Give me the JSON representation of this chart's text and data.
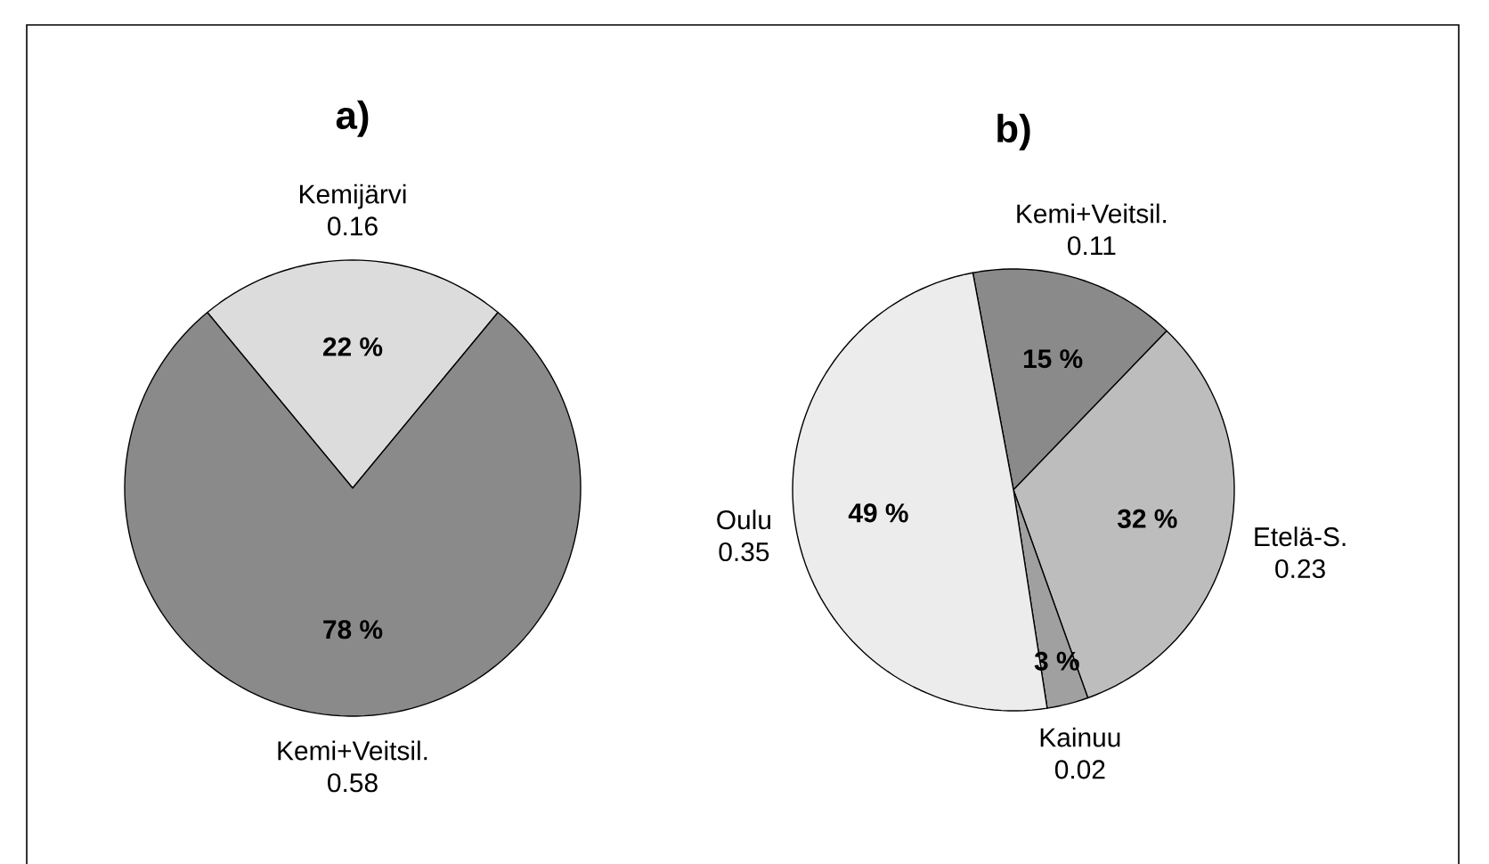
{
  "chart_data": [
    {
      "type": "pie",
      "title": "a)",
      "categories": [
        "Kemijärvi",
        "Kemi+Veitsil."
      ],
      "values": [
        22,
        78
      ],
      "colors": [
        "#dcdcdc",
        "#8a8a8a"
      ],
      "value_labels": [
        "22 %",
        "78 %"
      ],
      "annotations": [
        "0.16",
        "0.58"
      ]
    },
    {
      "type": "pie",
      "title": "b)",
      "categories": [
        "Kemi+Veitsil.",
        "Etelä-S.",
        "Kainuu",
        "Oulu"
      ],
      "values": [
        15,
        32,
        3,
        49
      ],
      "colors": [
        "#8a8a8a",
        "#bdbdbd",
        "#a0a0a0",
        "#ececec"
      ],
      "value_labels": [
        "15 %",
        "32 %",
        "3 %",
        "49 %"
      ],
      "annotations": [
        "0.11",
        "0.23",
        "0.02",
        "0.35"
      ]
    }
  ]
}
